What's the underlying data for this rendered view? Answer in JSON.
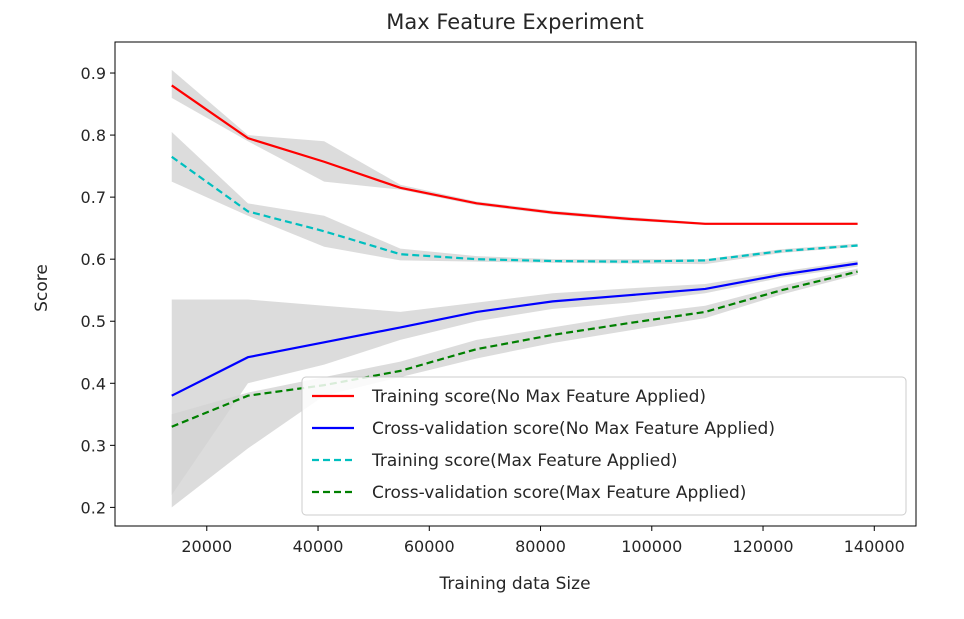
{
  "chart_data": {
    "type": "line",
    "title": "Max Feature Experiment",
    "xlabel": "Training data Size",
    "ylabel": "Score",
    "xlim": [
      3500,
      147500
    ],
    "ylim": [
      0.17,
      0.95
    ],
    "xticks": [
      20000,
      40000,
      60000,
      80000,
      100000,
      120000,
      140000
    ],
    "xtick_labels": [
      "20000",
      "40000",
      "60000",
      "80000",
      "100000",
      "120000",
      "140000"
    ],
    "yticks": [
      0.2,
      0.3,
      0.4,
      0.5,
      0.6,
      0.7,
      0.8,
      0.9
    ],
    "ytick_labels": [
      "0.2",
      "0.3",
      "0.4",
      "0.5",
      "0.6",
      "0.7",
      "0.8",
      "0.9"
    ],
    "grid": false,
    "legend_position": "lower-right",
    "x": [
      13700,
      27400,
      41100,
      54800,
      68500,
      82200,
      95900,
      109600,
      123300,
      137000
    ],
    "series": [
      {
        "name": "Training score(No Max Feature Applied)",
        "color": "#ff0000",
        "style": "solid",
        "values": [
          0.88,
          0.795,
          0.757,
          0.715,
          0.69,
          0.675,
          0.665,
          0.657,
          0.657,
          0.657
        ],
        "band_low": [
          0.86,
          0.79,
          0.725,
          0.712,
          0.687,
          0.672,
          0.662,
          0.655,
          0.655,
          0.655
        ],
        "band_high": [
          0.905,
          0.8,
          0.79,
          0.72,
          0.693,
          0.678,
          0.668,
          0.659,
          0.659,
          0.659
        ]
      },
      {
        "name": "Cross-validation score(No Max Feature Applied)",
        "color": "#0000ff",
        "style": "solid",
        "values": [
          0.38,
          0.442,
          0.466,
          0.49,
          0.515,
          0.532,
          0.542,
          0.552,
          0.575,
          0.593
        ],
        "band_low": [
          0.22,
          0.4,
          0.43,
          0.47,
          0.5,
          0.52,
          0.53,
          0.545,
          0.57,
          0.588
        ],
        "band_high": [
          0.535,
          0.535,
          0.525,
          0.515,
          0.53,
          0.545,
          0.553,
          0.56,
          0.58,
          0.598
        ]
      },
      {
        "name": "Training score(Max Feature Applied)",
        "color": "#00bfbf",
        "style": "dashed",
        "values": [
          0.765,
          0.677,
          0.645,
          0.608,
          0.6,
          0.597,
          0.596,
          0.598,
          0.613,
          0.622
        ],
        "band_low": [
          0.725,
          0.67,
          0.62,
          0.598,
          0.596,
          0.594,
          0.593,
          0.592,
          0.61,
          0.62
        ],
        "band_high": [
          0.805,
          0.69,
          0.67,
          0.617,
          0.605,
          0.6,
          0.6,
          0.6,
          0.616,
          0.625
        ]
      },
      {
        "name": "Cross-validation score(Max Feature Applied)",
        "color": "#008000",
        "style": "dashed",
        "values": [
          0.33,
          0.38,
          0.397,
          0.42,
          0.455,
          0.478,
          0.497,
          0.515,
          0.55,
          0.58
        ],
        "band_low": [
          0.2,
          0.295,
          0.38,
          0.41,
          0.44,
          0.465,
          0.485,
          0.505,
          0.543,
          0.575
        ],
        "band_high": [
          0.35,
          0.385,
          0.41,
          0.435,
          0.47,
          0.49,
          0.51,
          0.525,
          0.557,
          0.585
        ]
      }
    ],
    "band_color": "#d3d3d3"
  }
}
